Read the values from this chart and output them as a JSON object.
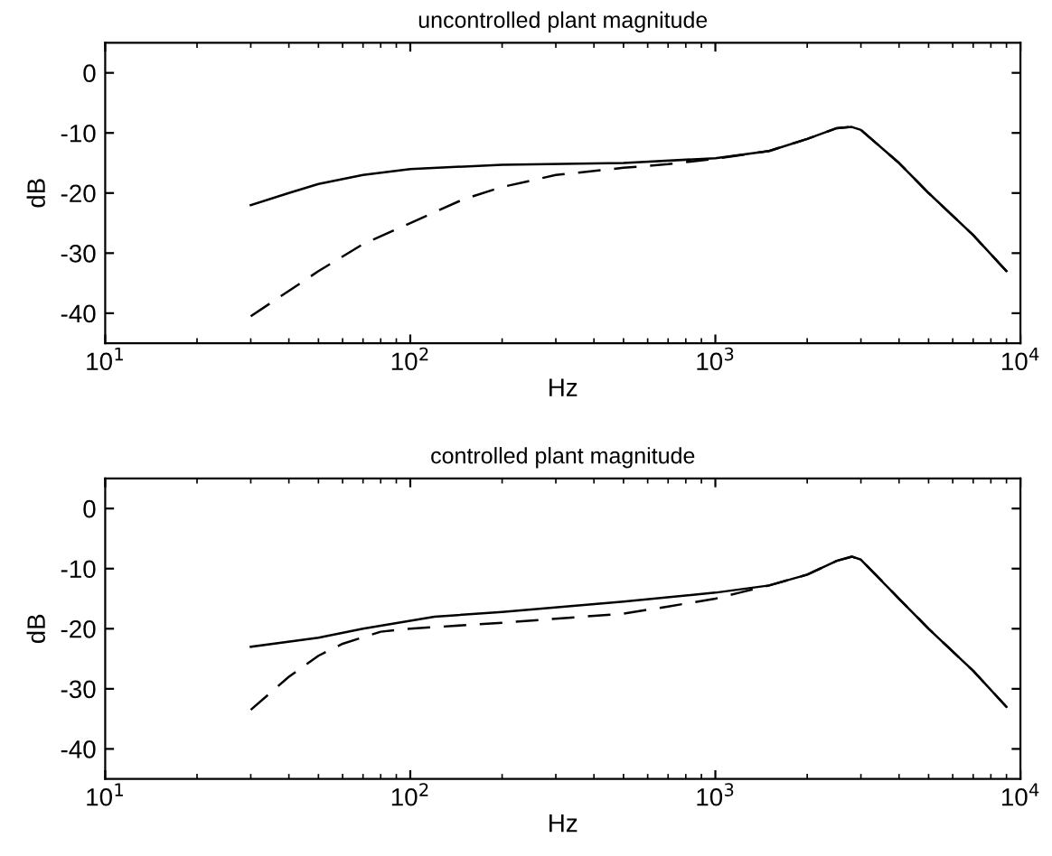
{
  "chart_data": [
    {
      "type": "line",
      "title": "uncontrolled plant magnitude",
      "xlabel": "Hz",
      "ylabel": "dB",
      "log": "x",
      "grid": false,
      "legend": false,
      "xlim": [
        10,
        10000
      ],
      "xticks": [
        {
          "value": 10,
          "label": "10$^{1}$"
        },
        {
          "value": 100,
          "label": "10$^{2}$"
        },
        {
          "value": 1000,
          "label": "10$^{3}$"
        },
        {
          "value": 10000,
          "label": "10$^{4}$"
        }
      ],
      "ylim": [
        -45,
        5
      ],
      "yticks": [
        -40,
        -30,
        -20,
        -10,
        0
      ],
      "series": [
        {
          "color": "#000000",
          "line_style": "solid",
          "x": [
            30,
            40,
            50,
            70,
            100,
            200,
            500,
            1000,
            1500,
            2000,
            2500,
            2800,
            3000,
            4000,
            5000,
            7000,
            9000
          ],
          "values": [
            -22,
            -20,
            -18.5,
            -17,
            -16,
            -15.3,
            -15,
            -14.2,
            -13,
            -11,
            -9.2,
            -9,
            -9.5,
            -15,
            -20,
            -27,
            -33
          ]
        },
        {
          "color": "#000000",
          "line_style": "dashed",
          "x": [
            30,
            50,
            70,
            100,
            150,
            200,
            300,
            500,
            700,
            1000,
            1500,
            2000,
            2500,
            2800,
            3000,
            4000,
            5000,
            7000,
            9000
          ],
          "values": [
            -40.5,
            -33,
            -28.5,
            -25,
            -21,
            -19,
            -17,
            -15.8,
            -15.2,
            -14.3,
            -13,
            -11,
            -9.2,
            -9,
            -9.5,
            -15,
            -20,
            -27,
            -33
          ]
        }
      ]
    },
    {
      "type": "line",
      "title": "controlled plant magnitude",
      "xlabel": "Hz",
      "ylabel": "dB",
      "log": "x",
      "grid": false,
      "legend": false,
      "xlim": [
        10,
        10000
      ],
      "xticks": [
        {
          "value": 10,
          "label": "10$^{1}$"
        },
        {
          "value": 100,
          "label": "10$^{2}$"
        },
        {
          "value": 1000,
          "label": "10$^{3}$"
        },
        {
          "value": 10000,
          "label": "10$^{4}$"
        }
      ],
      "ylim": [
        -45,
        5
      ],
      "yticks": [
        -40,
        -30,
        -20,
        -10,
        0
      ],
      "series": [
        {
          "color": "#000000",
          "line_style": "solid",
          "x": [
            30,
            50,
            70,
            120,
            200,
            500,
            1000,
            1500,
            2000,
            2500,
            2800,
            3000,
            4000,
            5000,
            7000,
            9000
          ],
          "values": [
            -23,
            -21.5,
            -20,
            -18,
            -17.2,
            -15.5,
            -14,
            -12.8,
            -11,
            -8.7,
            -8,
            -8.5,
            -15,
            -20,
            -27,
            -33
          ]
        },
        {
          "color": "#000000",
          "line_style": "dashed",
          "x": [
            30,
            40,
            50,
            60,
            80,
            100,
            200,
            500,
            700,
            1000,
            1200,
            1500,
            2000,
            2500,
            2800,
            3000,
            4000,
            5000,
            7000,
            9000
          ],
          "values": [
            -33.5,
            -28,
            -24.5,
            -22.5,
            -20.5,
            -20,
            -19,
            -17.5,
            -16.3,
            -15,
            -14,
            -12.8,
            -11,
            -8.7,
            -8,
            -8.5,
            -15,
            -20,
            -27,
            -33
          ]
        }
      ]
    }
  ]
}
